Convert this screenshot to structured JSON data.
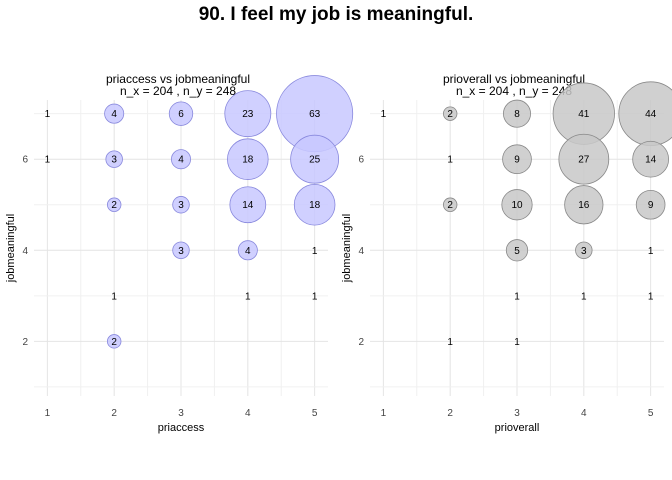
{
  "title": "90. I feel my job is meaningful.",
  "chart_data": [
    {
      "type": "scatter",
      "title": "priaccess vs jobmeaningful",
      "subtitle": "n_x = 204 , n_y = 248",
      "xlabel": "priaccess",
      "ylabel": "jobmeaningful",
      "xlim": [
        0.8,
        5.2
      ],
      "ylim": [
        0.8,
        7.3
      ],
      "x_ticks": [
        "1",
        "2",
        "3",
        "4",
        "5"
      ],
      "y_ticks": [
        "2",
        "4",
        "6"
      ],
      "grid": true,
      "fill_color": "#c8c8ff",
      "stroke_color": "#8888dd",
      "points": [
        {
          "x": 1,
          "y": 7,
          "n": 1
        },
        {
          "x": 2,
          "y": 7,
          "n": 4
        },
        {
          "x": 3,
          "y": 7,
          "n": 6
        },
        {
          "x": 4,
          "y": 7,
          "n": 23
        },
        {
          "x": 5,
          "y": 7,
          "n": 63
        },
        {
          "x": 1,
          "y": 6,
          "n": 1
        },
        {
          "x": 2,
          "y": 6,
          "n": 3
        },
        {
          "x": 3,
          "y": 6,
          "n": 4
        },
        {
          "x": 4,
          "y": 6,
          "n": 18
        },
        {
          "x": 5,
          "y": 6,
          "n": 25
        },
        {
          "x": 2,
          "y": 5,
          "n": 2
        },
        {
          "x": 3,
          "y": 5,
          "n": 3
        },
        {
          "x": 4,
          "y": 5,
          "n": 14
        },
        {
          "x": 5,
          "y": 5,
          "n": 18
        },
        {
          "x": 3,
          "y": 4,
          "n": 3
        },
        {
          "x": 4,
          "y": 4,
          "n": 4
        },
        {
          "x": 5,
          "y": 4,
          "n": 1
        },
        {
          "x": 2,
          "y": 3,
          "n": 1
        },
        {
          "x": 4,
          "y": 3,
          "n": 1
        },
        {
          "x": 5,
          "y": 3,
          "n": 1
        },
        {
          "x": 2,
          "y": 2,
          "n": 2
        }
      ]
    },
    {
      "type": "scatter",
      "title": "prioverall vs jobmeaningful",
      "subtitle": "n_x = 204 , n_y = 248",
      "xlabel": "prioverall",
      "ylabel": "jobmeaningful",
      "xlim": [
        0.8,
        5.2
      ],
      "ylim": [
        0.8,
        7.3
      ],
      "x_ticks": [
        "1",
        "2",
        "3",
        "4",
        "5"
      ],
      "y_ticks": [
        "2",
        "4",
        "6"
      ],
      "grid": true,
      "fill_color": "#c8c8c8",
      "stroke_color": "#888888",
      "points": [
        {
          "x": 1,
          "y": 7,
          "n": 1
        },
        {
          "x": 2,
          "y": 7,
          "n": 2
        },
        {
          "x": 3,
          "y": 7,
          "n": 8
        },
        {
          "x": 4,
          "y": 7,
          "n": 41
        },
        {
          "x": 5,
          "y": 7,
          "n": 44
        },
        {
          "x": 2,
          "y": 6,
          "n": 1
        },
        {
          "x": 3,
          "y": 6,
          "n": 9
        },
        {
          "x": 4,
          "y": 6,
          "n": 27
        },
        {
          "x": 5,
          "y": 6,
          "n": 14
        },
        {
          "x": 2,
          "y": 5,
          "n": 2
        },
        {
          "x": 3,
          "y": 5,
          "n": 10
        },
        {
          "x": 4,
          "y": 5,
          "n": 16
        },
        {
          "x": 5,
          "y": 5,
          "n": 9
        },
        {
          "x": 3,
          "y": 4,
          "n": 5
        },
        {
          "x": 4,
          "y": 4,
          "n": 3
        },
        {
          "x": 5,
          "y": 4,
          "n": 1
        },
        {
          "x": 3,
          "y": 3,
          "n": 1
        },
        {
          "x": 4,
          "y": 3,
          "n": 1
        },
        {
          "x": 5,
          "y": 3,
          "n": 1
        },
        {
          "x": 2,
          "y": 2,
          "n": 1
        },
        {
          "x": 3,
          "y": 2,
          "n": 1
        }
      ]
    }
  ]
}
